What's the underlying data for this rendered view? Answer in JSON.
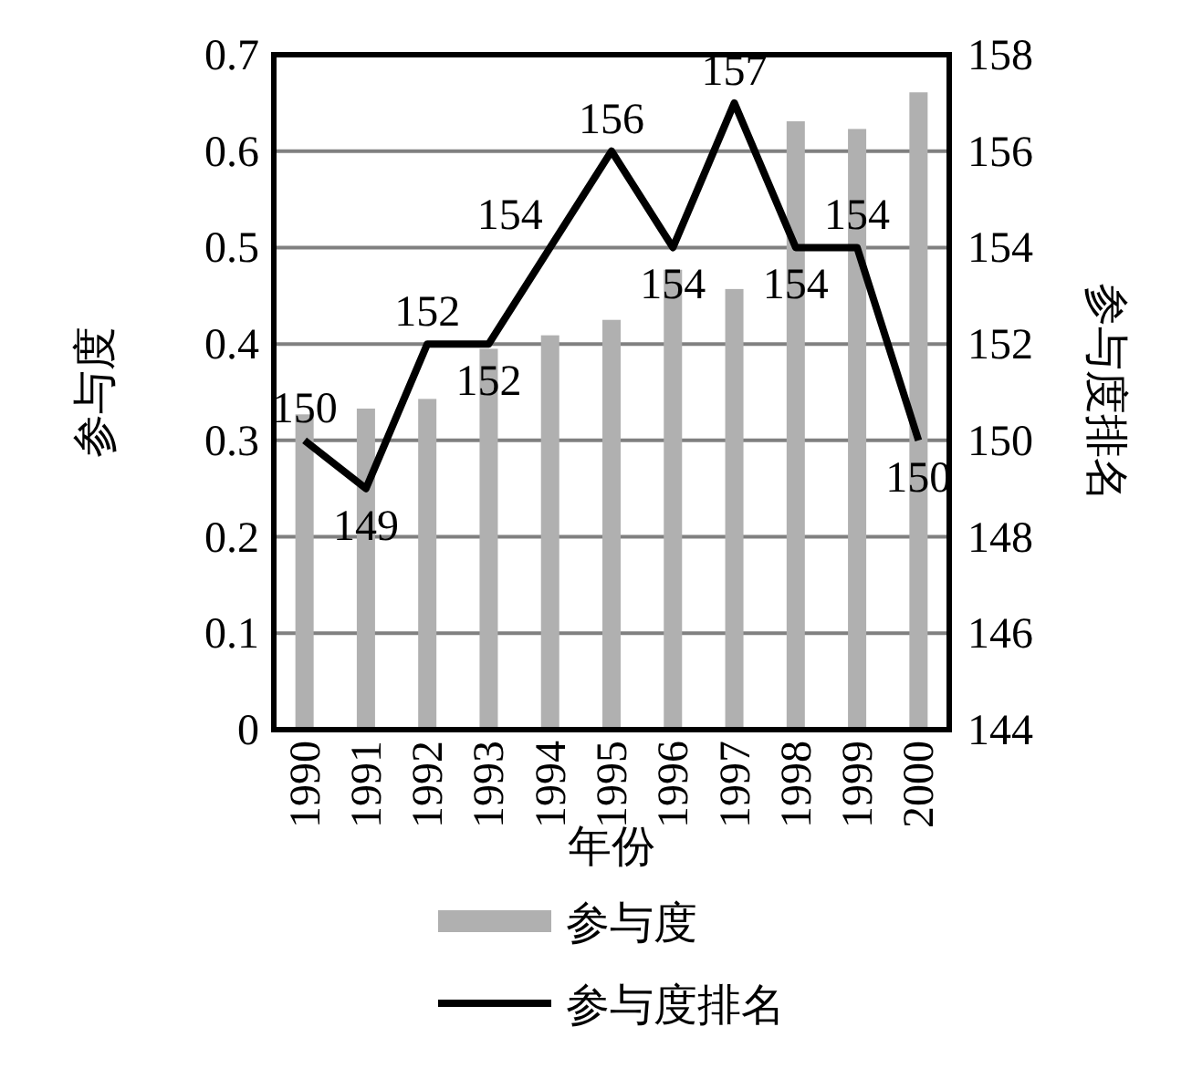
{
  "chart_data": {
    "type": "bar",
    "xlabel": "年份",
    "ylabel": "参与度",
    "y2label": "参与度排名",
    "categories": [
      "1990",
      "1991",
      "1992",
      "1993",
      "1994",
      "1995",
      "1996",
      "1997",
      "1998",
      "1999",
      "2000"
    ],
    "series": [
      {
        "name": "参与度",
        "color": "#b0b0b0",
        "values": [
          0.327,
          0.333,
          0.343,
          0.395,
          0.409,
          0.425,
          0.477,
          0.457,
          0.631,
          0.623,
          0.661
        ]
      },
      {
        "name": "参与度排名",
        "type": "line",
        "axis": "y2",
        "color": "#000000",
        "data_labels": true,
        "values": [
          150,
          149,
          152,
          152,
          154,
          156,
          154,
          157,
          154,
          154,
          150
        ]
      }
    ],
    "ylim": [
      0,
      0.7
    ],
    "yticks": [
      0,
      0.1,
      0.2,
      0.3,
      0.4,
      0.5,
      0.6,
      0.7
    ],
    "y2lim": [
      144,
      158
    ],
    "y2ticks": [
      144,
      146,
      148,
      150,
      152,
      154,
      156,
      158
    ],
    "grid": "y",
    "legend": "bottom",
    "marker": "none",
    "line_style": "solid"
  }
}
